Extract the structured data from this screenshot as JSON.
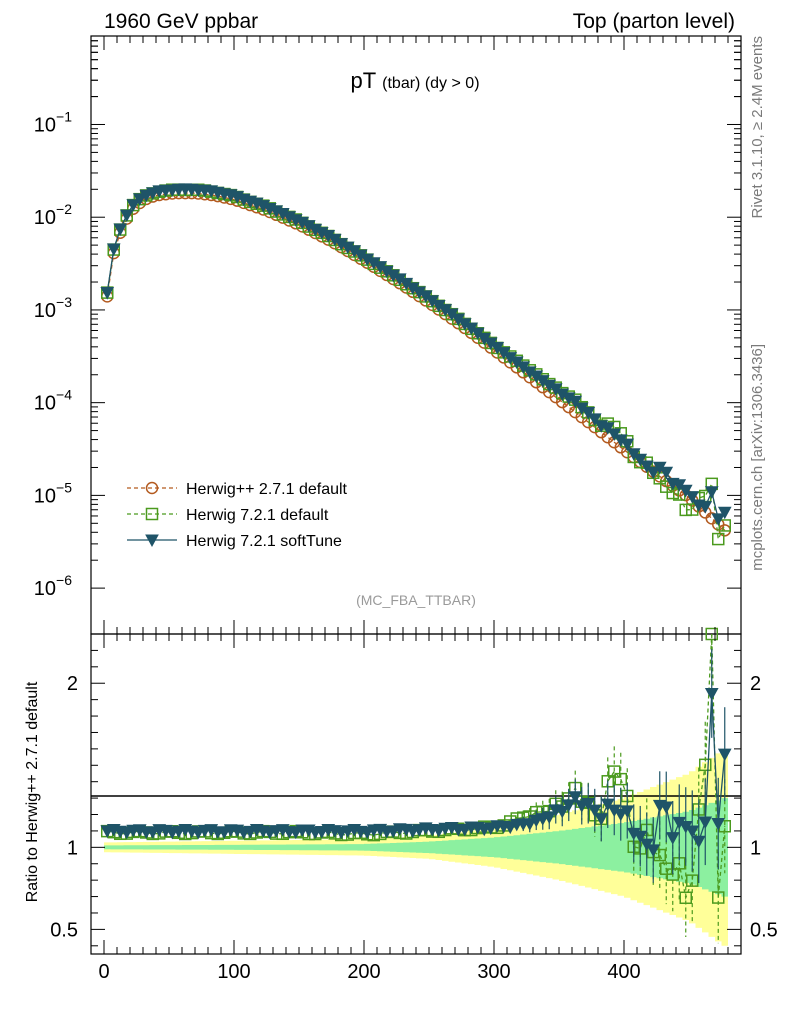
{
  "header": {
    "left": "1960 GeV ppbar",
    "right": "Top (parton level)"
  },
  "side_labels": {
    "rivet": "Rivet 3.1.10, ≥ 2.4M events",
    "mcplots": "mcplots.cern.ch [arXiv:1306.3436]"
  },
  "chart_data": {
    "type": "line",
    "title_main": "pT",
    "title_sub": "(tbar) (dy > 0)",
    "watermark": "(MC_FBA_TTBAR)",
    "x": {
      "lim": [
        -10,
        490
      ],
      "ticks": [
        0,
        100,
        200,
        300,
        400
      ],
      "tick_labels": [
        "0",
        "100",
        "200",
        "300",
        "400"
      ]
    },
    "main_panel": {
      "yscale": "log",
      "ylim": [
        3.2e-07,
        0.9
      ],
      "tick_exponents": [
        -6,
        -5,
        -4,
        -3,
        -2,
        -1
      ],
      "tick_labels_base": "10",
      "legend_position": "bottom-left"
    },
    "ratio_panel": {
      "ylabel": "Ratio to Herwig++ 2.7.1 default",
      "ylim": [
        0.35,
        2.3
      ],
      "ticks": [
        0.5,
        1,
        2
      ],
      "tick_labels": [
        "0.5",
        "1",
        "2"
      ]
    },
    "series": [
      {
        "name": "Herwig++ 2.7.1 default",
        "color": "#b35a1f",
        "marker": "open-circle",
        "line": "dashed"
      },
      {
        "name": "Herwig 7.2.1 default",
        "color": "#4b9a1e",
        "marker": "open-square",
        "line": "dashed"
      },
      {
        "name": "Herwig 7.2.1 softTune",
        "color": "#1f5468",
        "marker": "filled-triangle-down",
        "line": "solid"
      }
    ],
    "shape": {
      "x_start": 2.5,
      "x_step": 5,
      "n_points": 96,
      "reference_values": [
        [
          2.5,
          0.0014
        ],
        [
          7.5,
          0.0041
        ],
        [
          12.5,
          0.0068
        ],
        [
          20,
          0.0115
        ],
        [
          30,
          0.0153
        ],
        [
          40,
          0.0172
        ],
        [
          55,
          0.0182
        ],
        [
          70,
          0.0182
        ],
        [
          85,
          0.0172
        ],
        [
          100,
          0.0155
        ],
        [
          125,
          0.0118
        ],
        [
          150,
          0.0083
        ],
        [
          175,
          0.0055
        ],
        [
          200,
          0.0034
        ],
        [
          225,
          0.00205
        ],
        [
          250,
          0.0012
        ],
        [
          275,
          0.00068
        ],
        [
          300,
          0.00037
        ],
        [
          325,
          0.0002
        ],
        [
          350,
          0.000108
        ],
        [
          375,
          5.8e-05
        ],
        [
          400,
          3.1e-05
        ],
        [
          425,
          1.7e-05
        ],
        [
          450,
          9.5e-06
        ],
        [
          477.5,
          4.2e-06
        ]
      ],
      "ratio_softtune": [
        [
          2.5,
          1.1
        ],
        [
          50,
          1.1
        ],
        [
          100,
          1.1
        ],
        [
          150,
          1.1
        ],
        [
          200,
          1.1
        ],
        [
          250,
          1.11
        ],
        [
          300,
          1.12
        ],
        [
          330,
          1.15
        ],
        [
          350,
          1.22
        ],
        [
          365,
          1.3
        ],
        [
          380,
          1.2
        ],
        [
          395,
          1.25
        ],
        [
          410,
          1.1
        ],
        [
          420,
          0.95
        ],
        [
          430,
          1.3
        ],
        [
          440,
          1.05
        ],
        [
          450,
          1.2
        ],
        [
          460,
          0.9
        ],
        [
          467.5,
          1.9
        ],
        [
          472.5,
          1.1
        ],
        [
          477.5,
          1.7
        ]
      ],
      "ratio_h721": [
        [
          2.5,
          1.09
        ],
        [
          50,
          1.09
        ],
        [
          100,
          1.09
        ],
        [
          150,
          1.09
        ],
        [
          200,
          1.08
        ],
        [
          250,
          1.1
        ],
        [
          300,
          1.12
        ],
        [
          330,
          1.2
        ],
        [
          350,
          1.25
        ],
        [
          365,
          1.35
        ],
        [
          380,
          1.15
        ],
        [
          395,
          1.55
        ],
        [
          410,
          0.95
        ],
        [
          420,
          1.1
        ],
        [
          430,
          0.85
        ],
        [
          440,
          0.9
        ],
        [
          450,
          0.66
        ],
        [
          460,
          1.3
        ],
        [
          467.5,
          2.3
        ],
        [
          472.5,
          0.66
        ],
        [
          477.5,
          1.25
        ]
      ],
      "band_stat": [
        [
          2.5,
          0.012
        ],
        [
          100,
          0.015
        ],
        [
          200,
          0.02
        ],
        [
          250,
          0.035
        ],
        [
          300,
          0.06
        ],
        [
          350,
          0.1
        ],
        [
          400,
          0.15
        ],
        [
          450,
          0.22
        ],
        [
          477.5,
          0.3
        ]
      ],
      "band_total": [
        [
          2.5,
          0.03
        ],
        [
          100,
          0.04
        ],
        [
          200,
          0.05
        ],
        [
          250,
          0.07
        ],
        [
          300,
          0.12
        ],
        [
          350,
          0.2
        ],
        [
          400,
          0.3
        ],
        [
          450,
          0.45
        ],
        [
          477.5,
          0.6
        ]
      ]
    }
  }
}
